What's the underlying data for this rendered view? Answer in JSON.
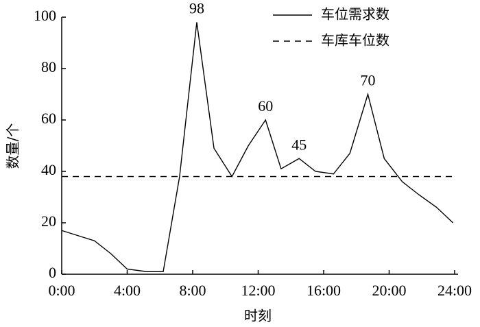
{
  "chart_data": {
    "type": "line",
    "xlabel": "时刻",
    "ylabel": "数量/个",
    "series": [
      {
        "name": "车位需求数",
        "color": "#000000",
        "dash": "solid",
        "x": [
          0,
          2,
          3,
          4,
          5.2,
          6.2,
          7.2,
          8.25,
          9.3,
          10.4,
          11.4,
          12.45,
          13.4,
          14.5,
          15.5,
          16.6,
          17.6,
          18.7,
          19.7,
          20.8,
          21.8,
          22.9,
          23.9
        ],
        "values": [
          17,
          13,
          8,
          2,
          1,
          1,
          38,
          98,
          49,
          38,
          50,
          60,
          41,
          45,
          40,
          39,
          47,
          70,
          45,
          36,
          31,
          26,
          20
        ]
      },
      {
        "name": "车库车位数",
        "color": "#000000",
        "dash": "dashed",
        "x": [
          0,
          24
        ],
        "values": [
          38,
          38
        ]
      }
    ],
    "annotations": [
      {
        "x": 8.25,
        "y": 98
      },
      {
        "x": 12.45,
        "y": 60
      },
      {
        "x": 14.5,
        "y": 45
      },
      {
        "x": 18.7,
        "y": 70
      }
    ],
    "xlim": [
      0,
      24
    ],
    "xticks": [
      {
        "value": 0,
        "label": "0:00"
      },
      {
        "value": 4,
        "label": "4:00"
      },
      {
        "value": 8,
        "label": "8:00"
      },
      {
        "value": 12,
        "label": "12:00"
      },
      {
        "value": 16,
        "label": "16:00"
      },
      {
        "value": 20,
        "label": "20:00"
      },
      {
        "value": 24,
        "label": "24:00"
      }
    ],
    "ylim": [
      0,
      100
    ],
    "yticks": [
      0,
      20,
      40,
      60,
      80,
      100
    ],
    "grid": false,
    "legend": "upper right"
  }
}
